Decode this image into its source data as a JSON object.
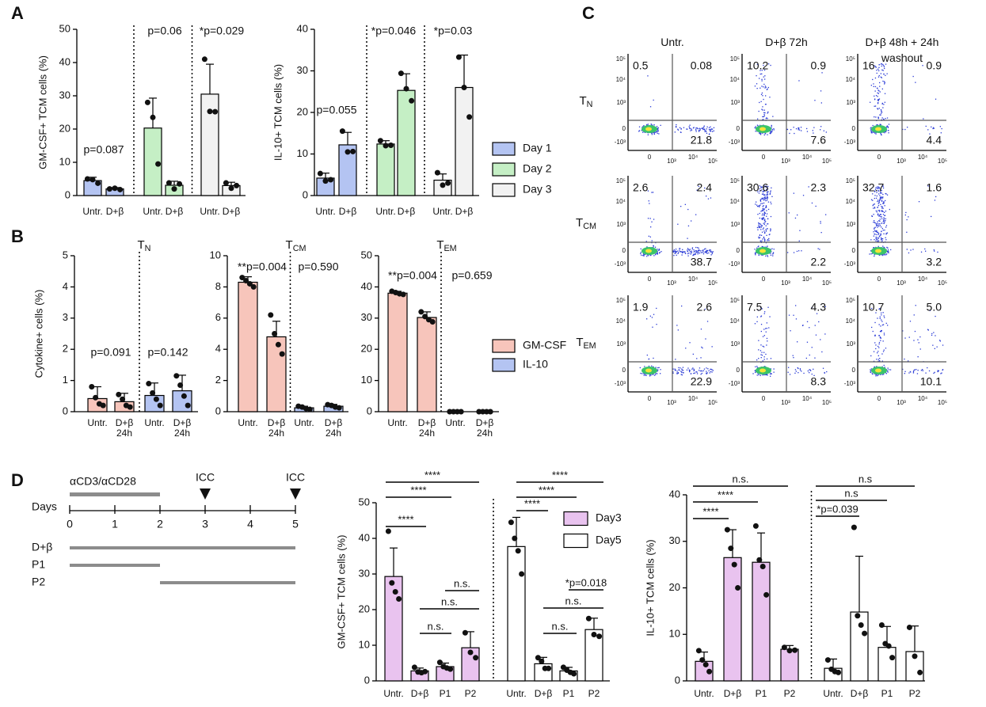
{
  "panel_labels": [
    "A",
    "B",
    "C",
    "D"
  ],
  "chart_data": [
    {
      "type": "bar",
      "ylabel": "GM-CSF+ TCM cells (%)",
      "ylim": [
        0,
        50
      ],
      "yticks": [
        0,
        10,
        20,
        30,
        40,
        50
      ],
      "categories": [
        "Untr.",
        "D+β",
        "Untr.",
        "D+β",
        "Untr.",
        "D+β"
      ],
      "series": [
        {
          "name": "Day 1",
          "color": "#b4c4f2",
          "values": [
            4.5,
            2.0,
            null,
            null,
            null,
            null
          ],
          "errors": [
            1,
            0.4,
            null,
            null,
            null,
            null
          ],
          "points": [
            [
              5,
              4.8,
              3.7
            ],
            [
              2,
              2.2,
              1.8
            ],
            null,
            null,
            null,
            null
          ]
        },
        {
          "name": "Day 2",
          "color": "#c5efc5",
          "values": [
            null,
            null,
            20.3,
            3.1,
            null,
            null
          ],
          "errors": [
            null,
            null,
            9,
            1.2,
            null,
            null
          ],
          "points": [
            null,
            null,
            [
              28,
              23.5,
              9.5
            ],
            [
              3.8,
              2,
              3.5
            ],
            null,
            null
          ]
        },
        {
          "name": "Day 3",
          "color": "#f2f2f2",
          "values": [
            null,
            null,
            null,
            null,
            30.5,
            3
          ],
          "errors": [
            null,
            null,
            null,
            null,
            9,
            1
          ],
          "points": [
            null,
            null,
            null,
            null,
            [
              41,
              25.3,
              25.2
            ],
            [
              3.8,
              2.2,
              3
            ]
          ]
        }
      ],
      "annotations": [
        "p=0.087",
        "p=0.06",
        "*p=0.029"
      ]
    },
    {
      "type": "bar",
      "ylabel": "IL-10+ TCM cells (%)",
      "ylim": [
        0,
        40
      ],
      "yticks": [
        0,
        10,
        20,
        30,
        40
      ],
      "legend": "right",
      "categories": [
        "Untr.",
        "D+β",
        "Untr.",
        "D+β",
        "Untr.",
        "D+β"
      ],
      "series": [
        {
          "name": "Day 1",
          "color": "#b4c4f2",
          "values": [
            4.2,
            12.2,
            null,
            null,
            null,
            null
          ],
          "errors": [
            1.2,
            3,
            null,
            null,
            null,
            null
          ],
          "points": [
            [
              5.3,
              3.5,
              3.8
            ],
            [
              15.5,
              10.5,
              10.6
            ],
            null,
            null,
            null,
            null
          ]
        },
        {
          "name": "Day 2",
          "color": "#c5efc5",
          "values": [
            null,
            null,
            12.4,
            25.3,
            null,
            null
          ],
          "errors": [
            null,
            null,
            0.8,
            4,
            null,
            null
          ],
          "points": [
            null,
            null,
            [
              13.2,
              12,
              12.1
            ],
            [
              29.4,
              25.7,
              22.8
            ],
            null,
            null
          ]
        },
        {
          "name": "Day 3",
          "color": "#f2f2f2",
          "values": [
            null,
            null,
            null,
            null,
            3.7,
            26
          ],
          "errors": [
            null,
            null,
            null,
            null,
            1.5,
            7.8
          ],
          "points": [
            null,
            null,
            null,
            null,
            [
              5.5,
              2.5,
              3
            ],
            [
              33.3,
              26,
              18.9
            ]
          ]
        }
      ],
      "annotations": [
        "p=0.055",
        "*p=0.046",
        "*p=0.03"
      ]
    },
    {
      "type": "bar",
      "title": {
        "text": "T",
        "sub": "N"
      },
      "ylabel": "Cytokine+ cells (%)",
      "ylim": [
        0,
        5
      ],
      "yticks": [
        0,
        1,
        2,
        3,
        4,
        5
      ],
      "categories": [
        "Untr.",
        "D+β 24h",
        "Untr.",
        "D+β 24h"
      ],
      "series": [
        {
          "name": "GM-CSF",
          "color": "#f7c5bb",
          "values": [
            0.42,
            0.32,
            null,
            null
          ],
          "errors": [
            0.38,
            0.27,
            null,
            null
          ],
          "points": [
            [
              0.8,
              0.45,
              0.25,
              0.2
            ],
            [
              0.55,
              0.4,
              0.2,
              0.15
            ],
            null,
            null
          ]
        },
        {
          "name": "IL-10",
          "color": "#b4c4f2",
          "values": [
            null,
            null,
            0.52,
            0.67
          ],
          "errors": [
            null,
            null,
            0.4,
            0.5
          ],
          "points": [
            null,
            null,
            [
              0.9,
              0.6,
              0.4,
              0.2
            ],
            [
              1.15,
              0.85,
              0.5,
              0.2
            ]
          ]
        }
      ],
      "annotations": [
        "p=0.091",
        "p=0.142"
      ]
    },
    {
      "type": "bar",
      "title": {
        "text": "T",
        "sub": "CM"
      },
      "ylim": [
        0,
        10
      ],
      "yticks": [
        0,
        2,
        4,
        6,
        8,
        10
      ],
      "categories": [
        "Untr.",
        "D+β 24h",
        "Untr.",
        "D+β 24h"
      ],
      "series": [
        {
          "name": "GM-CSF",
          "color": "#f7c5bb",
          "values": [
            8.3,
            4.8,
            null,
            null
          ],
          "errors": [
            0.35,
            1,
            null,
            null
          ],
          "points": [
            [
              8.6,
              8.4,
              8.2,
              8.0
            ],
            [
              6.2,
              5.0,
              4.3,
              3.7
            ],
            null,
            null
          ]
        },
        {
          "name": "IL-10",
          "color": "#b4c4f2",
          "values": [
            null,
            null,
            0.25,
            0.35
          ],
          "errors": [
            null,
            null,
            0.1,
            0.12
          ],
          "points": [
            null,
            null,
            [
              0.35,
              0.3,
              0.2,
              0.15
            ],
            [
              0.45,
              0.4,
              0.3,
              0.25
            ]
          ]
        }
      ],
      "annotations": [
        "**p=0.004",
        "p=0.590"
      ]
    },
    {
      "type": "bar",
      "title": {
        "text": "T",
        "sub": "EM"
      },
      "ylim": [
        0,
        50
      ],
      "yticks": [
        0,
        10,
        20,
        30,
        40,
        50
      ],
      "legend": "right",
      "categories": [
        "Untr.",
        "D+β 24h",
        "Untr.",
        "D+β 24h"
      ],
      "series": [
        {
          "name": "GM-CSF",
          "color": "#f7c5bb",
          "values": [
            38,
            30.2,
            null,
            null
          ],
          "errors": [
            0.6,
            1.8,
            null,
            null
          ],
          "points": [
            [
              38.6,
              38.2,
              37.8,
              37.6
            ],
            [
              32,
              30.5,
              29.5,
              28.8
            ],
            null,
            null
          ]
        },
        {
          "name": "IL-10",
          "color": "#b4c4f2",
          "values": [
            null,
            null,
            0,
            0
          ],
          "errors": [
            null,
            null,
            0,
            0
          ],
          "points": [
            null,
            null,
            [
              0,
              0,
              0,
              0
            ],
            [
              0,
              0,
              0,
              0
            ]
          ]
        }
      ],
      "annotations": [
        "**p=0.004",
        "p=0.659"
      ]
    },
    {
      "type": "bar",
      "ylabel": "GM-CSF+ TCM cells (%)",
      "ylim": [
        0,
        50
      ],
      "yticks": [
        0,
        10,
        20,
        30,
        40,
        50
      ],
      "legend": "upper right",
      "categories": [
        "Untr.",
        "D+β",
        "P1",
        "P2",
        "Untr.",
        "D+β",
        "P1",
        "P2"
      ],
      "series": [
        {
          "name": "Day3",
          "color": "#e9c3ef",
          "values": [
            29.3,
            2.8,
            4,
            9.3,
            null,
            null,
            null,
            null
          ],
          "errors": [
            8,
            0.8,
            1,
            4.5,
            null,
            null,
            null,
            null
          ],
          "points": [
            [
              42,
              27.5,
              25,
              23
            ],
            [
              3.8,
              2.5,
              2.3,
              2.6
            ],
            [
              5.2,
              4,
              3.6,
              3.3
            ],
            [
              13.5,
              8,
              6.5
            ],
            null,
            null,
            null,
            null
          ]
        },
        {
          "name": "Day5",
          "color": "#ffffff",
          "values": [
            null,
            null,
            null,
            null,
            37.7,
            4.8,
            2.8,
            14.4
          ],
          "errors": [
            null,
            null,
            null,
            null,
            8.2,
            1.8,
            1,
            3.2
          ],
          "points": [
            null,
            null,
            null,
            null,
            [
              44.5,
              40,
              36.5,
              30
            ],
            [
              6.5,
              5.5,
              3.5,
              3.5
            ],
            [
              3.8,
              3,
              2.4,
              2
            ],
            [
              17.5,
              13,
              12.5
            ]
          ]
        }
      ],
      "annotations": [
        "****",
        "****",
        "****",
        "n.s.",
        "n.s.",
        "n.s.",
        "****",
        "****",
        "****",
        "*p=0.018",
        "n.s.",
        "n.s."
      ]
    },
    {
      "type": "bar",
      "ylabel": "IL-10+ TCM cells (%)",
      "ylim": [
        0,
        40
      ],
      "yticks": [
        0,
        10,
        20,
        30,
        40
      ],
      "categories": [
        "Untr.",
        "D+β",
        "P1",
        "P2",
        "Untr.",
        "D+β",
        "P1",
        "P2"
      ],
      "series": [
        {
          "name": "Day3",
          "color": "#e9c3ef",
          "values": [
            4.2,
            26.5,
            25.5,
            6.8,
            null,
            null,
            null,
            null
          ],
          "errors": [
            2,
            6,
            6.3,
            0.8,
            null,
            null,
            null,
            null
          ],
          "points": [
            [
              6.5,
              4.5,
              3.5,
              2
            ],
            [
              32.5,
              28.5,
              25,
              20
            ],
            [
              33.3,
              26,
              24.6,
              18.5
            ],
            [
              7.2,
              6.5,
              6.6
            ],
            null,
            null,
            null,
            null
          ]
        },
        {
          "name": "Day5",
          "color": "#ffffff",
          "values": [
            null,
            null,
            null,
            null,
            2.7,
            14.8,
            7.2,
            6.3
          ],
          "errors": [
            null,
            null,
            null,
            null,
            2,
            12,
            4.5,
            5.5
          ],
          "points": [
            null,
            null,
            null,
            null,
            [
              4.5,
              2.5,
              2,
              1.8
            ],
            [
              33,
              14,
              12,
              10.2
            ],
            [
              12,
              8,
              7.5,
              5
            ],
            [
              11.5,
              5.3,
              1.8
            ]
          ]
        }
      ],
      "annotations": [
        "n.s.",
        "****",
        "****",
        "n.s",
        "n.s",
        "*p=0.039"
      ]
    }
  ],
  "flow": {
    "columns": [
      "Untr.",
      "D+β 72h",
      "D+β 48h + 24h washout"
    ],
    "rows": [
      {
        "text": "T",
        "sub": "N"
      },
      {
        "text": "T",
        "sub": "CM"
      },
      {
        "text": "T",
        "sub": "EM"
      }
    ],
    "cells": [
      [
        [
          "0.5",
          "0.08",
          "21.8"
        ],
        [
          "10.2",
          "0.9",
          "7.6"
        ],
        [
          "16",
          "0.9",
          "4.4"
        ]
      ],
      [
        [
          "2.6",
          "2.4",
          "38.7"
        ],
        [
          "30.6",
          "2.3",
          "2.2"
        ],
        [
          "32.7",
          "1.6",
          "3.2"
        ]
      ],
      [
        [
          "1.9",
          "2.6",
          "22.9"
        ],
        [
          "7.5",
          "4.3",
          "8.3"
        ],
        [
          "10.7",
          "5.0",
          "10.1"
        ]
      ]
    ],
    "tick_labels": {
      "y": [
        "10⁵",
        "10⁴",
        "10³",
        "0",
        "-10³"
      ],
      "x": [
        "0",
        "10³",
        "10⁴",
        "10⁵"
      ]
    }
  },
  "timeline": {
    "label": "Days",
    "xlim": [
      0,
      5
    ],
    "ticks": [
      0,
      1,
      2,
      3,
      4,
      5
    ],
    "stimulation": {
      "label": "αCD3/αCD28",
      "start": 0,
      "end": 2
    },
    "markers": [
      {
        "label": "ICC",
        "day": 3
      },
      {
        "label": "ICC",
        "day": 5
      }
    ],
    "treatments": [
      {
        "name": "D+β",
        "start": 0,
        "end": 5
      },
      {
        "name": "P1",
        "start": 0,
        "end": 2
      },
      {
        "name": "P2",
        "start": 2,
        "end": 5
      }
    ]
  }
}
